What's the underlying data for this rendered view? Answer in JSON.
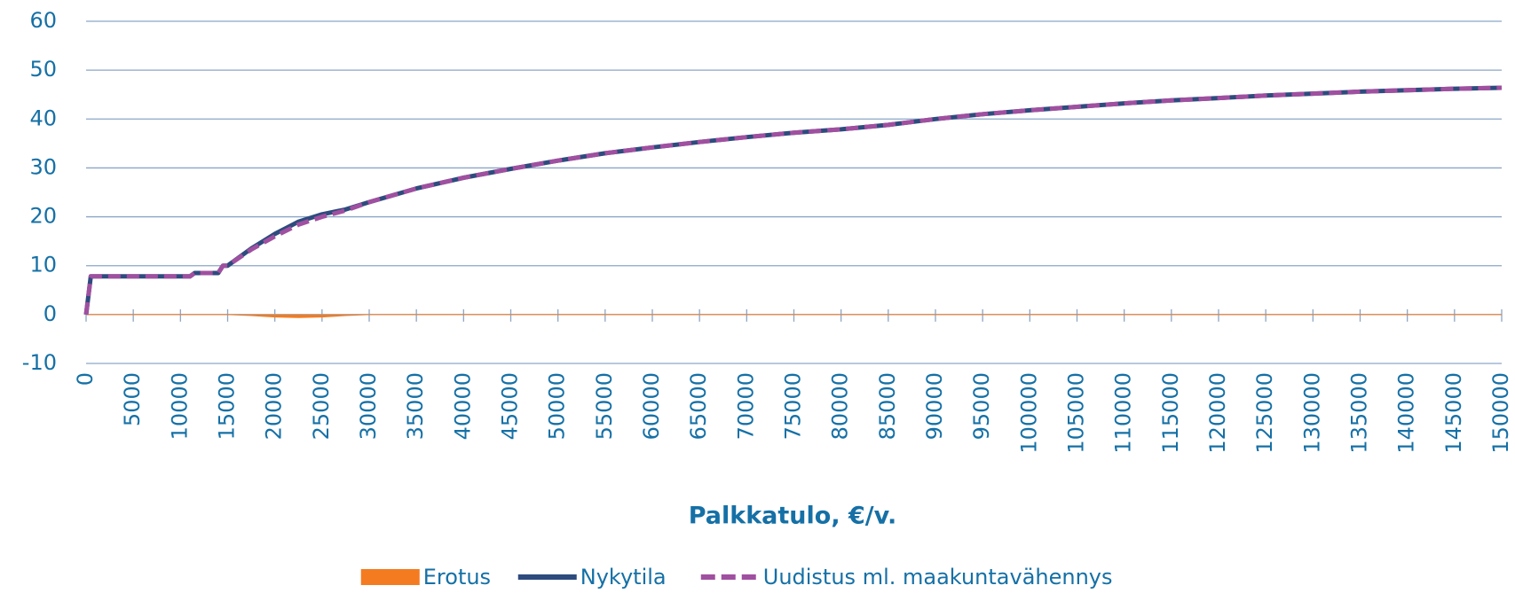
{
  "chart_data": {
    "type": "line",
    "xlabel": "Palkkatulo, €/v.",
    "x": [
      0,
      500,
      5000,
      10000,
      11000,
      11500,
      14000,
      14500,
      15000,
      17500,
      20000,
      22500,
      25000,
      27500,
      30000,
      35000,
      40000,
      45000,
      50000,
      55000,
      60000,
      65000,
      70000,
      75000,
      80000,
      85000,
      90000,
      95000,
      100000,
      105000,
      110000,
      115000,
      120000,
      125000,
      130000,
      135000,
      140000,
      145000,
      150000
    ],
    "series": [
      {
        "name": "Erotus",
        "color": "#f47b20",
        "style": "area",
        "values": [
          0,
          0,
          0,
          0,
          0,
          0,
          0,
          0,
          0,
          -0.2,
          -0.5,
          -0.6,
          -0.5,
          -0.2,
          0,
          0,
          0,
          0,
          0,
          0,
          0,
          0,
          0,
          0,
          0,
          0,
          0,
          0,
          0,
          0,
          0,
          0,
          0,
          0,
          0,
          0,
          0,
          0,
          0
        ]
      },
      {
        "name": "Nykytila",
        "color": "#2e4b7e",
        "style": "line",
        "values": [
          0,
          7.8,
          7.8,
          7.8,
          7.8,
          8.5,
          8.5,
          10,
          10,
          13.5,
          16.5,
          19,
          20.5,
          21.5,
          23,
          25.8,
          28,
          29.8,
          31.5,
          33,
          34.2,
          35.3,
          36.3,
          37.2,
          37.9,
          38.8,
          40,
          41,
          41.8,
          42.5,
          43.2,
          43.8,
          44.3,
          44.8,
          45.2,
          45.6,
          45.9,
          46.2,
          46.4
        ]
      },
      {
        "name": "Uudistus ml. maakuntavähennys",
        "color": "#a050a0",
        "style": "dashed",
        "values": [
          0,
          7.8,
          7.8,
          7.8,
          7.8,
          8.5,
          8.5,
          10,
          10,
          13.3,
          16.0,
          18.4,
          20.0,
          21.3,
          23,
          25.8,
          28,
          29.8,
          31.5,
          33,
          34.2,
          35.3,
          36.3,
          37.2,
          37.9,
          38.8,
          40,
          41,
          41.8,
          42.5,
          43.2,
          43.8,
          44.3,
          44.8,
          45.2,
          45.6,
          45.9,
          46.2,
          46.4
        ]
      }
    ],
    "xlim": [
      0,
      150000
    ],
    "xticks": [
      0,
      5000,
      10000,
      15000,
      20000,
      25000,
      30000,
      35000,
      40000,
      45000,
      50000,
      55000,
      60000,
      65000,
      70000,
      75000,
      80000,
      85000,
      90000,
      95000,
      100000,
      105000,
      110000,
      115000,
      120000,
      125000,
      130000,
      135000,
      140000,
      145000,
      150000
    ],
    "ylim": [
      -10,
      60
    ],
    "yticks": [
      -10,
      0,
      10,
      20,
      30,
      40,
      50,
      60
    ],
    "grid": true,
    "legend": "bottom"
  }
}
